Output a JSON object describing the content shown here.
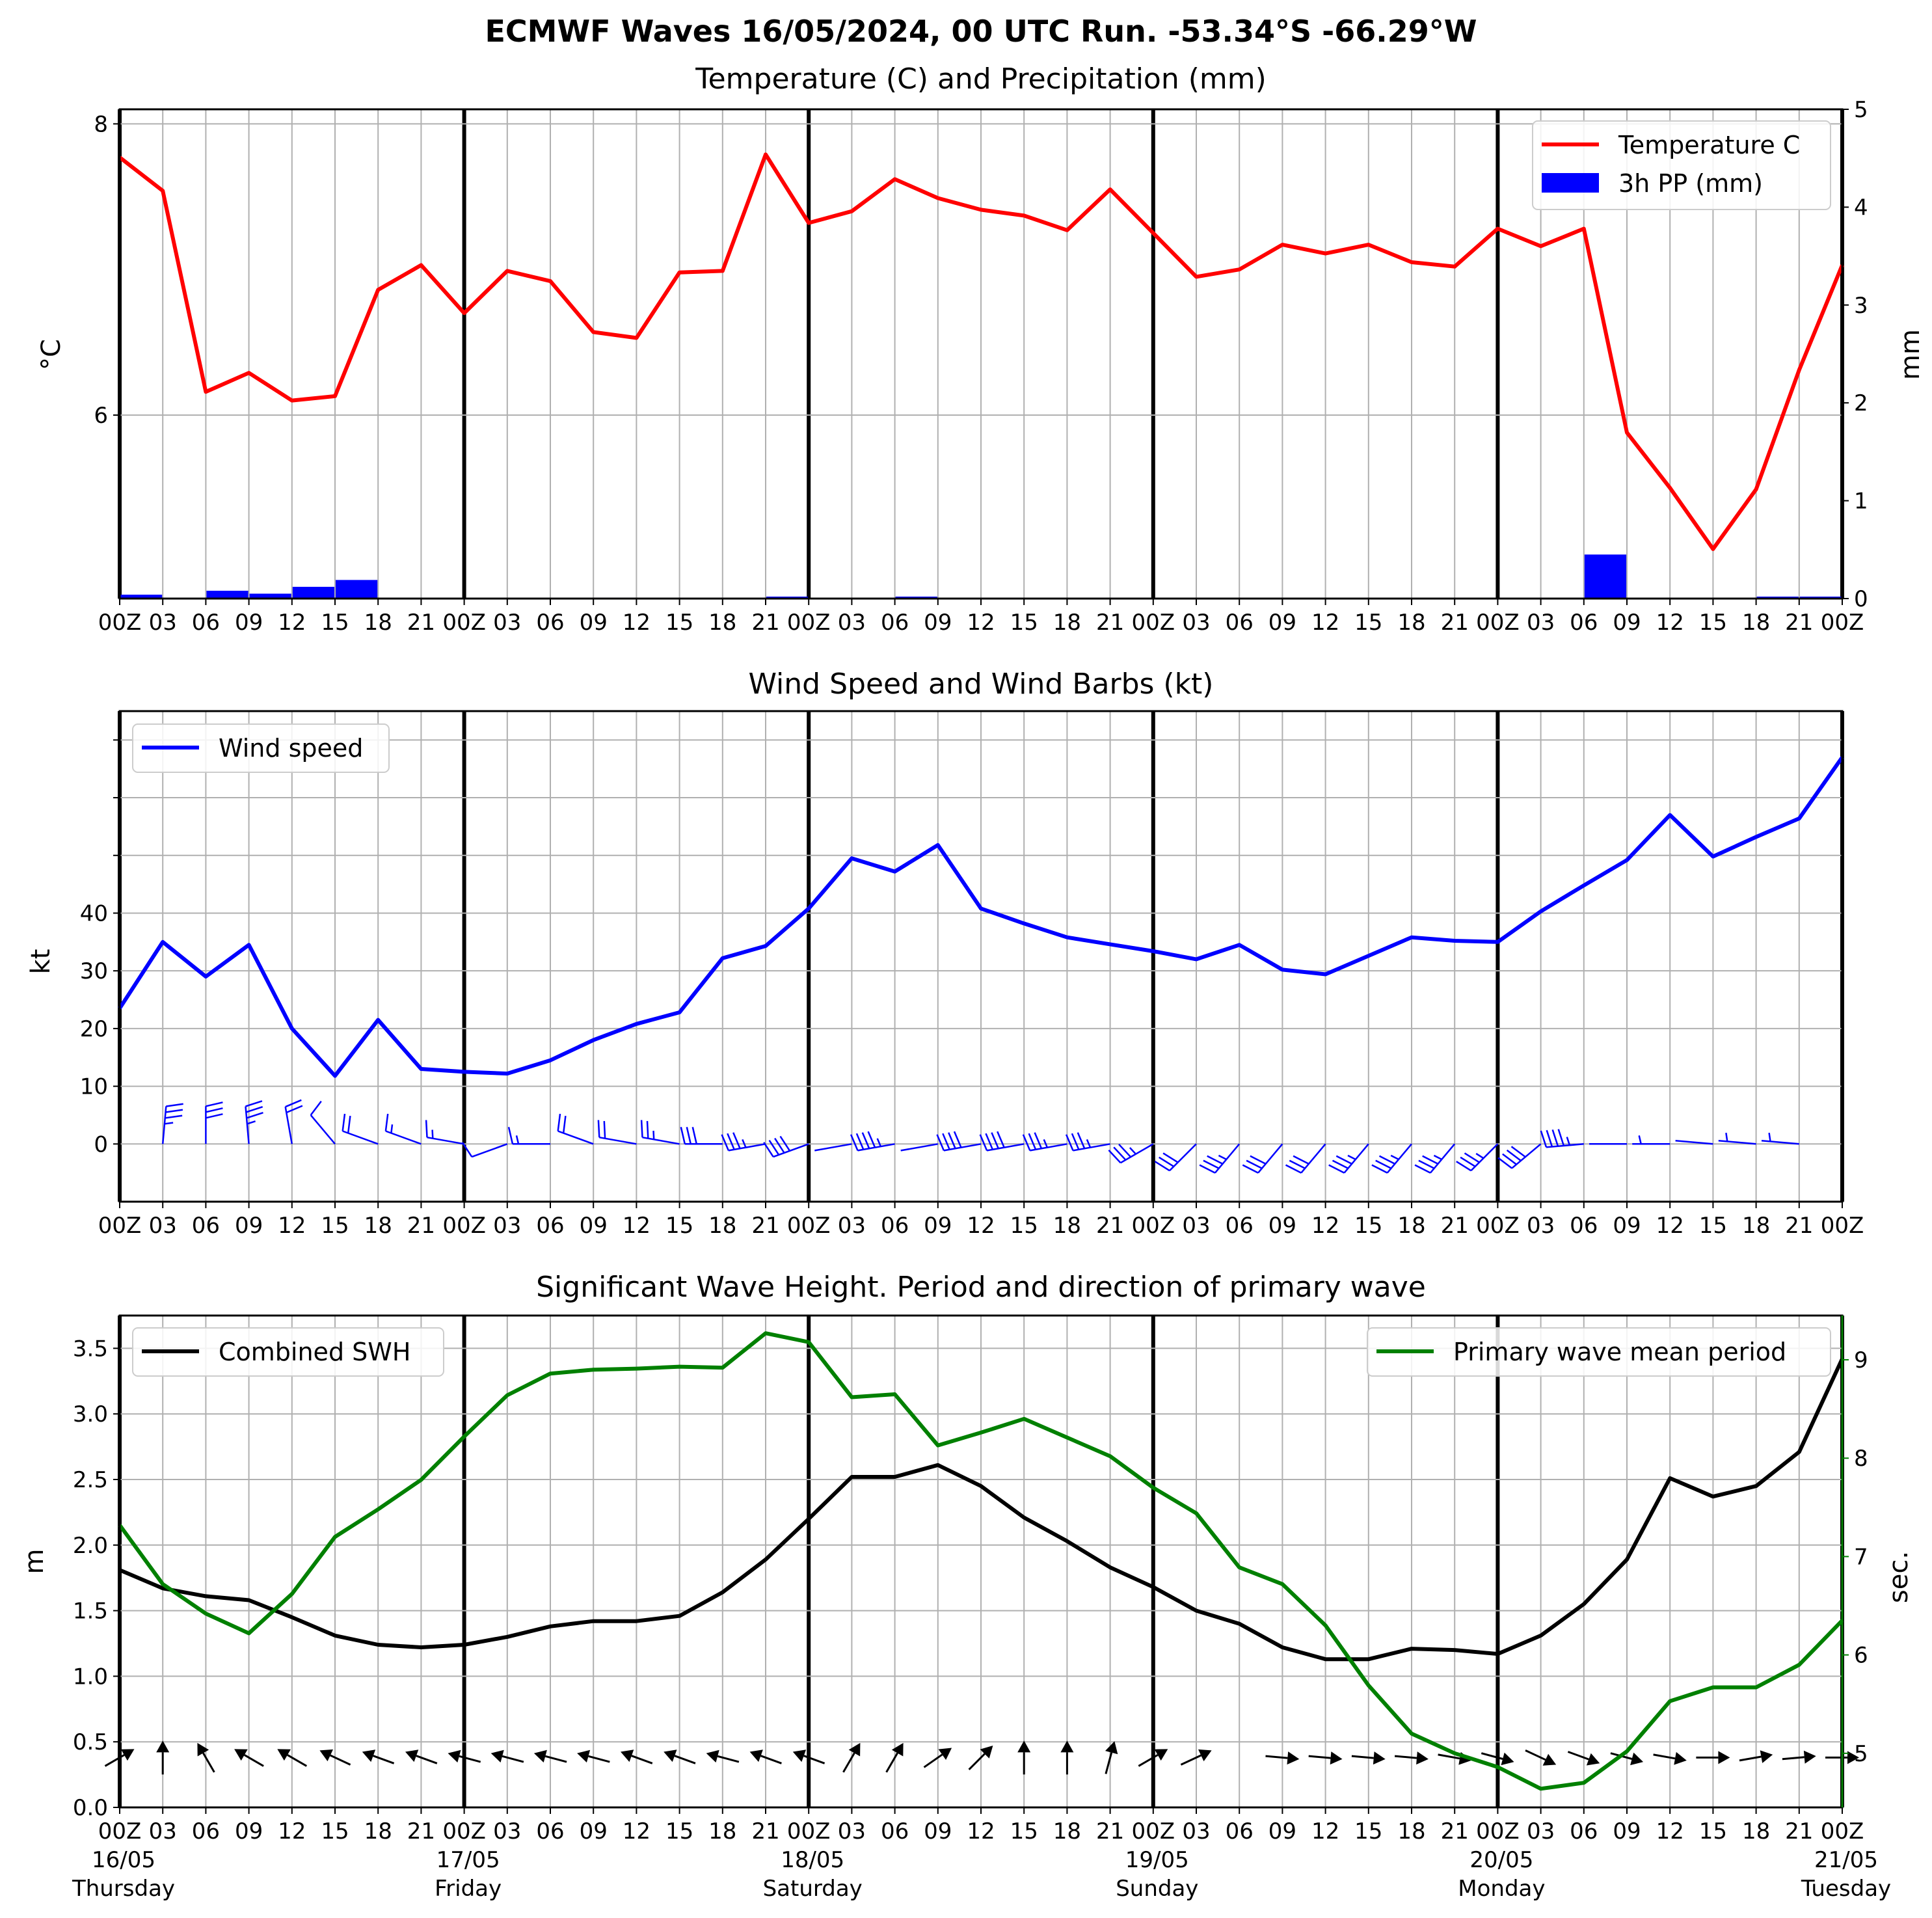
{
  "suptitle": "ECMWF Waves 16/05/2024, 00 UTC Run. -53.34°S -66.29°W",
  "colors": {
    "temperature": "#ff0000",
    "precip": "#0000ff",
    "wind": "#0000ff",
    "swh": "#000000",
    "period": "#008000",
    "grid": "#b0b0b0"
  },
  "x_tick_labels": [
    "00Z",
    "03",
    "06",
    "09",
    "12",
    "15",
    "18",
    "21",
    "00Z",
    "03",
    "06",
    "09",
    "12",
    "15",
    "18",
    "21",
    "00Z",
    "03",
    "06",
    "09",
    "12",
    "15",
    "18",
    "21",
    "00Z",
    "03",
    "06",
    "09",
    "12",
    "15",
    "18",
    "21",
    "00Z",
    "03",
    "06",
    "09",
    "12",
    "15",
    "18",
    "21",
    "00Z"
  ],
  "day_labels": [
    {
      "date": "16/05",
      "day": "Thursday"
    },
    {
      "date": "17/05",
      "day": "Friday"
    },
    {
      "date": "18/05",
      "day": "Saturday"
    },
    {
      "date": "19/05",
      "day": "Sunday"
    },
    {
      "date": "20/05",
      "day": "Monday"
    },
    {
      "date": "21/05",
      "day": "Tuesday"
    }
  ],
  "chart_data": [
    {
      "type": "line",
      "title": "Temperature (C) and Precipitation (mm)",
      "ylabel": "°C",
      "ylabel_right": "mm",
      "ylim": [
        4.74,
        8.1
      ],
      "yticks": [
        6,
        8
      ],
      "ylim_right": [
        0,
        5
      ],
      "yticks_right": [
        0,
        1,
        2,
        3,
        4,
        5
      ],
      "legend": "top-right",
      "series": [
        {
          "name": "Temperature C",
          "kind": "line",
          "values": [
            7.77,
            7.54,
            6.16,
            6.29,
            6.1,
            6.13,
            6.86,
            7.03,
            6.7,
            6.99,
            6.92,
            6.57,
            6.53,
            6.98,
            6.99,
            7.79,
            7.32,
            7.4,
            7.62,
            7.49,
            7.41,
            7.37,
            7.27,
            7.55,
            7.25,
            6.95,
            7.0,
            7.17,
            7.11,
            7.17,
            7.05,
            7.02,
            7.28,
            7.16,
            7.28,
            5.88,
            5.5,
            5.08,
            5.49,
            6.31,
            7.03
          ]
        },
        {
          "name": "3h PP (mm)",
          "kind": "bar",
          "values": [
            0.04,
            0,
            0.08,
            0.05,
            0.12,
            0.19,
            0,
            0,
            0,
            0,
            0,
            0.01,
            0,
            0,
            0,
            0.02,
            0,
            0,
            0.02,
            0,
            0,
            0,
            0,
            0,
            0,
            0,
            0,
            0,
            0,
            0,
            0,
            0,
            0,
            0,
            0.45,
            0,
            0,
            0,
            0.02,
            0.02
          ]
        }
      ]
    },
    {
      "type": "line",
      "title": "Wind Speed and Wind Barbs (kt)",
      "ylabel": "kt",
      "ylim": [
        -10,
        75
      ],
      "yticks": [
        0,
        10,
        20,
        30,
        40
      ],
      "yticks_unlabeled": [
        50,
        60,
        70
      ],
      "legend": "top-left",
      "series": [
        {
          "name": "Wind speed",
          "values": [
            23.5,
            35.0,
            29.0,
            34.5,
            20.0,
            11.8,
            21.5,
            13.0,
            12.5,
            12.2,
            14.5,
            18.0,
            20.8,
            22.8,
            32.2,
            34.3,
            40.8,
            49.5,
            47.2,
            51.8,
            40.8,
            38.2,
            35.8,
            34.6,
            33.4,
            32.0,
            34.5,
            30.2,
            29.4,
            32.6,
            35.8,
            35.2,
            35.0,
            40.3,
            44.8,
            49.2,
            57.0,
            49.8,
            53.2,
            56.4,
            67.0
          ]
        }
      ],
      "barbs": {
        "from_direction_deg": [
          5,
          5,
          0,
          355,
          350,
          320,
          290,
          290,
          280,
          250,
          270,
          290,
          280,
          280,
          270,
          260,
          250,
          260,
          260,
          260,
          260,
          260,
          260,
          260,
          240,
          225,
          220,
          220,
          220,
          220,
          220,
          220,
          225,
          230,
          265,
          270,
          270,
          275,
          275,
          275,
          270
        ],
        "shown_every": 1
      }
    },
    {
      "type": "line",
      "title": "Significant Wave Height. Period and direction of primary wave",
      "ylabel": "m",
      "ylabel_right": "sec.",
      "ylim": [
        0,
        3.75
      ],
      "yticks": [
        0.0,
        0.5,
        1.0,
        1.5,
        2.0,
        2.5,
        3.0,
        3.5
      ],
      "ylim_right": [
        4.45,
        9.45
      ],
      "yticks_right": [
        5,
        6,
        7,
        8,
        9
      ],
      "series": [
        {
          "name": "Combined SWH",
          "legend": "top-left",
          "values": [
            1.81,
            1.67,
            1.61,
            1.58,
            1.45,
            1.31,
            1.24,
            1.22,
            1.24,
            1.3,
            1.38,
            1.42,
            1.42,
            1.46,
            1.64,
            1.89,
            2.2,
            2.52,
            2.52,
            2.61,
            2.45,
            2.21,
            2.03,
            1.83,
            1.68,
            1.5,
            1.4,
            1.22,
            1.13,
            1.13,
            1.21,
            1.2,
            1.17,
            1.31,
            1.55,
            1.89,
            2.51,
            2.37,
            2.45,
            2.71,
            3.42
          ]
        },
        {
          "name": "Primary wave mean period",
          "legend": "top-right",
          "values": [
            7.32,
            6.72,
            6.42,
            6.22,
            6.62,
            7.2,
            7.48,
            7.78,
            8.22,
            8.64,
            8.86,
            8.9,
            8.91,
            8.93,
            8.92,
            9.27,
            9.18,
            8.62,
            8.65,
            8.13,
            8.26,
            8.4,
            8.21,
            8.02,
            7.7,
            7.44,
            6.89,
            6.72,
            6.3,
            5.69,
            5.2,
            5.0,
            4.86,
            4.64,
            4.7,
            5.02,
            5.53,
            5.67,
            5.67,
            5.9,
            6.35
          ]
        }
      ],
      "direction_arrows_to_deg": [
        60,
        0,
        330,
        300,
        300,
        295,
        290,
        290,
        285,
        285,
        285,
        285,
        290,
        290,
        285,
        290,
        290,
        30,
        30,
        55,
        45,
        0,
        0,
        15,
        60,
        65,
        null,
        95,
        95,
        95,
        95,
        100,
        105,
        115,
        110,
        105,
        100,
        90,
        80,
        85,
        90
      ]
    }
  ]
}
